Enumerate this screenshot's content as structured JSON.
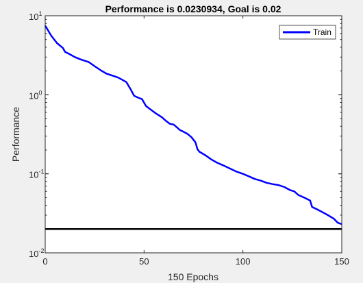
{
  "chart_data": {
    "type": "line",
    "title": "Performance is 0.0230934, Goal is 0.02",
    "xlabel": "150 Epochs",
    "ylabel": "Performance",
    "xlim": [
      0,
      150
    ],
    "ylim": [
      0.01,
      10
    ],
    "yscale": "log",
    "x_ticks": [
      "0",
      "50",
      "100",
      "150"
    ],
    "y_ticks": [
      {
        "base": "10",
        "exp": "-2"
      },
      {
        "base": "10",
        "exp": "-1"
      },
      {
        "base": "10",
        "exp": "0"
      },
      {
        "base": "10",
        "exp": "1"
      }
    ],
    "grid": false,
    "legend": "top-right",
    "series": [
      {
        "name": "Train",
        "color": "#0000ff",
        "x": [
          0,
          3,
          6,
          9,
          10,
          12,
          15,
          18,
          22,
          25,
          28,
          31,
          34,
          37,
          41,
          43,
          45,
          47,
          49,
          51,
          53,
          56,
          59,
          61,
          63,
          65,
          67,
          68,
          70,
          72,
          74,
          76,
          77,
          78,
          81,
          84,
          87,
          90,
          93,
          97,
          99,
          100,
          103,
          106,
          109,
          112,
          115,
          118,
          121,
          124,
          126,
          128,
          131,
          134,
          135,
          137,
          140,
          143,
          146,
          148,
          150
        ],
        "y": [
          7.5,
          5.6,
          4.5,
          3.9,
          3.5,
          3.3,
          3.0,
          2.8,
          2.6,
          2.3,
          2.05,
          1.85,
          1.75,
          1.65,
          1.45,
          1.2,
          0.97,
          0.92,
          0.88,
          0.72,
          0.66,
          0.58,
          0.52,
          0.47,
          0.43,
          0.42,
          0.38,
          0.36,
          0.34,
          0.32,
          0.29,
          0.25,
          0.205,
          0.19,
          0.172,
          0.152,
          0.138,
          0.128,
          0.118,
          0.106,
          0.102,
          0.1,
          0.093,
          0.086,
          0.082,
          0.077,
          0.074,
          0.072,
          0.068,
          0.062,
          0.06,
          0.054,
          0.05,
          0.046,
          0.038,
          0.036,
          0.033,
          0.03,
          0.027,
          0.024,
          0.0231
        ]
      },
      {
        "name": "",
        "color": "#000000",
        "x": [
          0,
          150
        ],
        "y": [
          0.02,
          0.02
        ]
      }
    ]
  }
}
